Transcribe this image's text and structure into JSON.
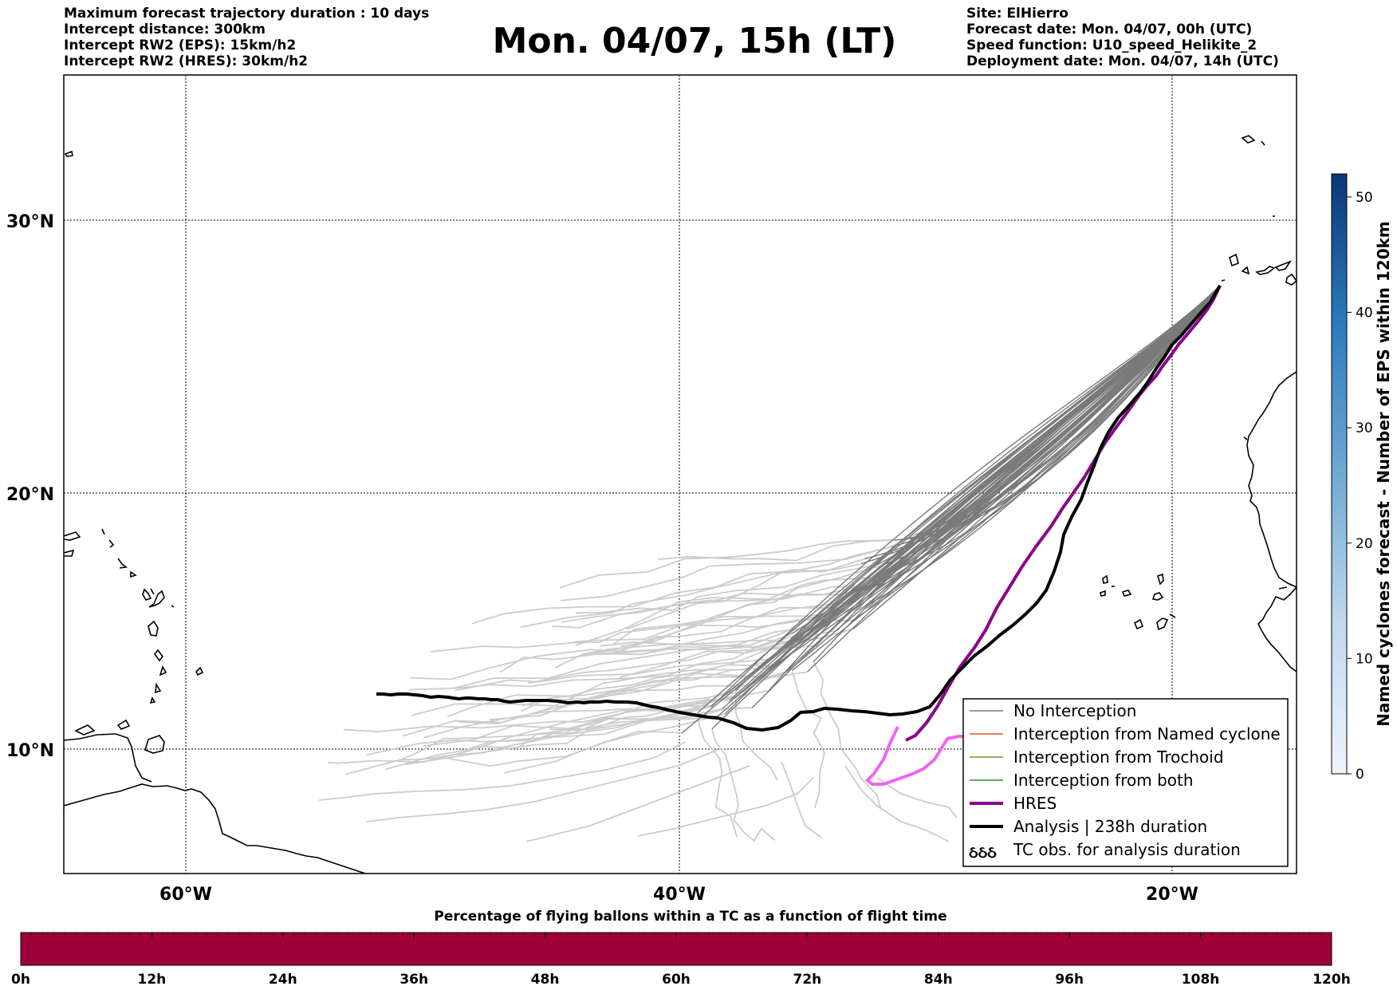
{
  "header": {
    "left_lines": [
      "Maximum forecast trajectory duration : 10 days",
      "Intercept distance: 300km",
      "Intercept RW2 (EPS):  15km/h2",
      "Intercept RW2 (HRES): 30km/h2"
    ],
    "right_lines": [
      "Site: ElHierro",
      "Forecast date: Mon. 04/07, 00h (UTC)",
      "Speed function: U10_speed_Helikite_2",
      "Deployment date: Mon. 04/07, 14h (UTC)"
    ]
  },
  "title": "Mon. 04/07, 15h (LT)",
  "map": {
    "lat_labels": [
      "30°N",
      "20°N",
      "10°N"
    ],
    "lon_labels": [
      "60°W",
      "40°W",
      "20°W"
    ],
    "colors": {
      "no_interception": "#7a7a7a",
      "named_cyclone": "#e0592b",
      "trochoid": "#8a8a2a",
      "both": "#2e8b2e",
      "hres": "#8b008b",
      "hres_late": "#ee66ee",
      "analysis": "#000000",
      "late_ensemble": "#cccccc"
    },
    "legend": [
      {
        "label": "No Interception"
      },
      {
        "label": "Interception from Named cyclone"
      },
      {
        "label": "Interception from Trochoid"
      },
      {
        "label": "Interception from both"
      },
      {
        "label": "HRES"
      },
      {
        "label": "Analysis | 238h duration"
      },
      {
        "label": "TC obs. for analysis duration",
        "glyph": "ઠઠઠ"
      }
    ]
  },
  "colorbar_right": {
    "label": "Named cyclones forecast - Number of EPS within 120km",
    "ticks": [
      "0",
      "10",
      "20",
      "30",
      "40",
      "50"
    ],
    "max": 52
  },
  "timebar": {
    "title": "Percentage of flying ballons within a TC as a function of flight time",
    "ticks": [
      "0h",
      "12h",
      "24h",
      "36h",
      "48h",
      "60h",
      "72h",
      "84h",
      "96h",
      "108h",
      "120h"
    ],
    "fill_color": "#9e003a"
  }
}
